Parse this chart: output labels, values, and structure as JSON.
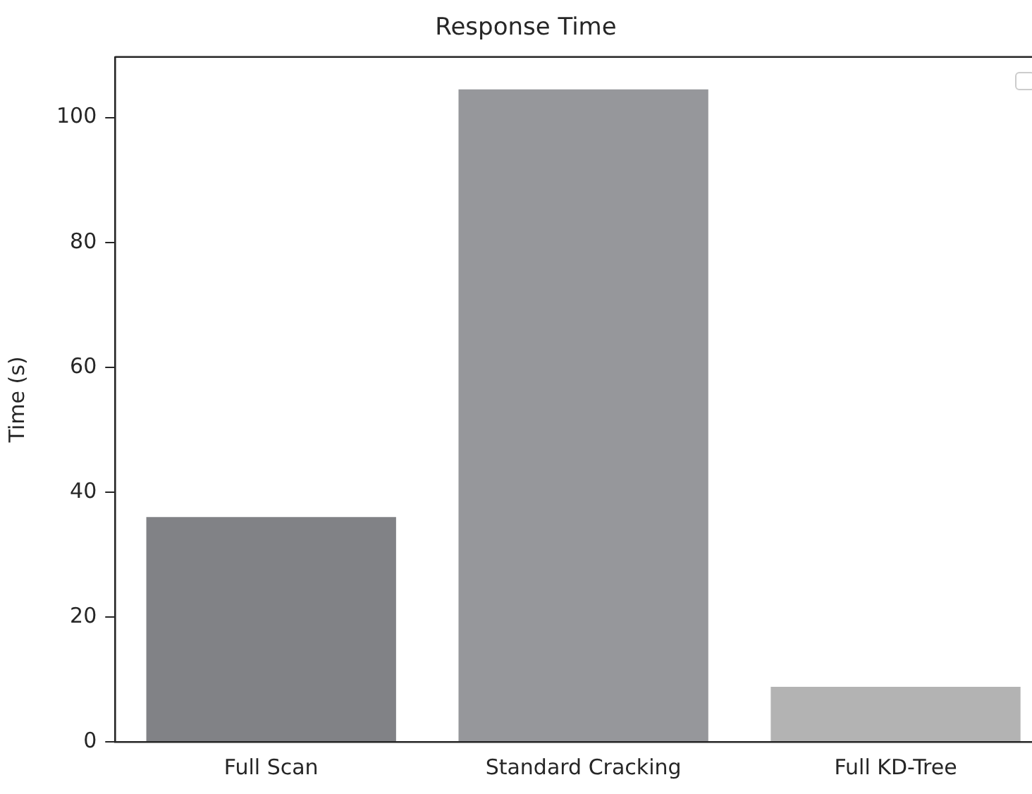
{
  "chart_data": {
    "type": "bar",
    "title": "Response Time",
    "ylabel": "Time (s)",
    "categories": [
      "Full Scan",
      "Standard Cracking",
      "Full KD-Tree"
    ],
    "values": [
      36.0,
      104.5,
      8.8
    ],
    "colors": [
      "#818286",
      "#96979b",
      "#b3b3b3"
    ],
    "ylim": [
      0,
      109.7
    ],
    "yticks": [
      0,
      20,
      40,
      60,
      80,
      100
    ],
    "grid": false,
    "legend": false
  }
}
